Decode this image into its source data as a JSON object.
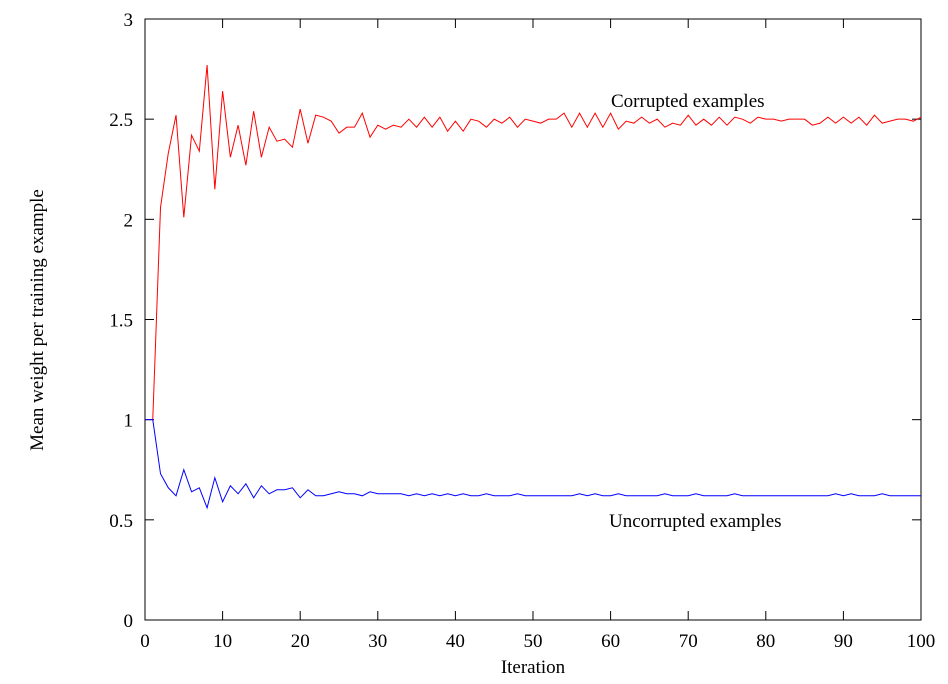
{
  "chart_data": {
    "type": "line",
    "title": "",
    "xlabel": "Iteration",
    "ylabel": "Mean weight per training example",
    "xlim": [
      0,
      100
    ],
    "ylim": [
      0,
      3
    ],
    "x_ticks": [
      0,
      10,
      20,
      30,
      40,
      50,
      60,
      70,
      80,
      90,
      100
    ],
    "y_ticks": [
      0,
      0.5,
      1,
      1.5,
      2,
      2.5,
      3
    ],
    "y_tick_labels": [
      "0",
      "0.5",
      "1",
      "1.5",
      "2",
      "2.5",
      "3"
    ],
    "grid": false,
    "legend": "none",
    "series": [
      {
        "annotation": "Corrupted examples",
        "color": "#ff0000",
        "x": [
          0,
          1,
          2,
          3,
          4,
          5,
          6,
          7,
          8,
          9,
          10,
          11,
          12,
          13,
          14,
          15,
          16,
          17,
          18,
          19,
          20,
          21,
          22,
          23,
          24,
          25,
          26,
          27,
          28,
          29,
          30,
          31,
          32,
          33,
          34,
          35,
          36,
          37,
          38,
          39,
          40,
          41,
          42,
          43,
          44,
          45,
          46,
          47,
          48,
          49,
          50,
          51,
          52,
          53,
          54,
          55,
          56,
          57,
          58,
          59,
          60,
          61,
          62,
          63,
          64,
          65,
          66,
          67,
          68,
          69,
          70,
          71,
          72,
          73,
          74,
          75,
          76,
          77,
          78,
          79,
          80,
          81,
          82,
          83,
          84,
          85,
          86,
          87,
          88,
          89,
          90,
          91,
          92,
          93,
          94,
          95,
          96,
          97,
          98,
          99,
          100
        ],
        "y": [
          1.0,
          1.0,
          2.06,
          2.33,
          2.52,
          2.01,
          2.42,
          2.34,
          2.77,
          2.15,
          2.64,
          2.31,
          2.47,
          2.27,
          2.54,
          2.31,
          2.46,
          2.39,
          2.4,
          2.36,
          2.55,
          2.38,
          2.52,
          2.51,
          2.49,
          2.43,
          2.46,
          2.46,
          2.53,
          2.41,
          2.47,
          2.45,
          2.47,
          2.46,
          2.5,
          2.46,
          2.51,
          2.46,
          2.51,
          2.44,
          2.49,
          2.44,
          2.5,
          2.49,
          2.46,
          2.5,
          2.48,
          2.51,
          2.46,
          2.5,
          2.49,
          2.48,
          2.5,
          2.5,
          2.53,
          2.46,
          2.53,
          2.46,
          2.53,
          2.46,
          2.53,
          2.45,
          2.49,
          2.48,
          2.51,
          2.48,
          2.5,
          2.46,
          2.48,
          2.47,
          2.52,
          2.47,
          2.5,
          2.47,
          2.51,
          2.47,
          2.51,
          2.5,
          2.48,
          2.51,
          2.5,
          2.5,
          2.49,
          2.5,
          2.5,
          2.5,
          2.47,
          2.48,
          2.51,
          2.48,
          2.51,
          2.48,
          2.51,
          2.47,
          2.52,
          2.48,
          2.49,
          2.5,
          2.5,
          2.49,
          2.51
        ]
      },
      {
        "annotation": "Uncorrupted examples",
        "color": "#0000ff",
        "x": [
          0,
          1,
          2,
          3,
          4,
          5,
          6,
          7,
          8,
          9,
          10,
          11,
          12,
          13,
          14,
          15,
          16,
          17,
          18,
          19,
          20,
          21,
          22,
          23,
          24,
          25,
          26,
          27,
          28,
          29,
          30,
          31,
          32,
          33,
          34,
          35,
          36,
          37,
          38,
          39,
          40,
          41,
          42,
          43,
          44,
          45,
          46,
          47,
          48,
          49,
          50,
          51,
          52,
          53,
          54,
          55,
          56,
          57,
          58,
          59,
          60,
          61,
          62,
          63,
          64,
          65,
          66,
          67,
          68,
          69,
          70,
          71,
          72,
          73,
          74,
          75,
          76,
          77,
          78,
          79,
          80,
          81,
          82,
          83,
          84,
          85,
          86,
          87,
          88,
          89,
          90,
          91,
          92,
          93,
          94,
          95,
          96,
          97,
          98,
          99,
          100
        ],
        "y": [
          1.0,
          1.0,
          0.73,
          0.66,
          0.62,
          0.75,
          0.64,
          0.66,
          0.56,
          0.71,
          0.59,
          0.67,
          0.63,
          0.68,
          0.61,
          0.67,
          0.63,
          0.65,
          0.65,
          0.66,
          0.61,
          0.65,
          0.62,
          0.62,
          0.63,
          0.64,
          0.63,
          0.63,
          0.62,
          0.64,
          0.63,
          0.63,
          0.63,
          0.63,
          0.62,
          0.63,
          0.62,
          0.63,
          0.62,
          0.63,
          0.62,
          0.63,
          0.62,
          0.62,
          0.63,
          0.62,
          0.62,
          0.62,
          0.63,
          0.62,
          0.62,
          0.62,
          0.62,
          0.62,
          0.62,
          0.62,
          0.63,
          0.62,
          0.63,
          0.62,
          0.62,
          0.63,
          0.62,
          0.62,
          0.62,
          0.62,
          0.62,
          0.63,
          0.62,
          0.62,
          0.62,
          0.63,
          0.62,
          0.62,
          0.62,
          0.62,
          0.63,
          0.62,
          0.62,
          0.62,
          0.62,
          0.62,
          0.62,
          0.62,
          0.62,
          0.62,
          0.62,
          0.62,
          0.62,
          0.63,
          0.62,
          0.63,
          0.62,
          0.62,
          0.62,
          0.63,
          0.62,
          0.62,
          0.62,
          0.62,
          0.62
        ]
      }
    ]
  }
}
